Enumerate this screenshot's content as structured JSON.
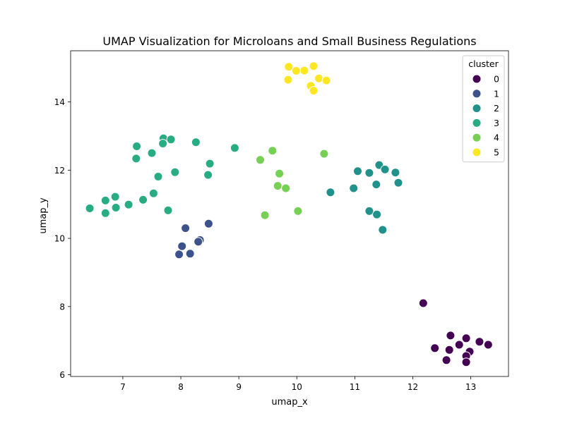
{
  "chart_data": {
    "type": "scatter",
    "title": "UMAP Visualization for Microloans and Small Business Regulations",
    "xlabel": "umap_x",
    "ylabel": "umap_y",
    "xlim": [
      6.1,
      13.65
    ],
    "ylim": [
      5.95,
      15.5
    ],
    "xticks": [
      7,
      8,
      9,
      10,
      11,
      12,
      13
    ],
    "yticks": [
      6,
      8,
      10,
      12,
      14
    ],
    "grid": false,
    "legend": {
      "title": "cluster",
      "placement": "top-right"
    },
    "series": [
      {
        "name": "0",
        "color": "#440154",
        "points": [
          [
            12.18,
            8.1
          ],
          [
            12.65,
            7.15
          ],
          [
            12.92,
            7.07
          ],
          [
            13.15,
            6.97
          ],
          [
            13.3,
            6.88
          ],
          [
            12.8,
            6.88
          ],
          [
            12.38,
            6.78
          ],
          [
            12.63,
            6.73
          ],
          [
            12.98,
            6.68
          ],
          [
            12.92,
            6.55
          ],
          [
            12.58,
            6.43
          ],
          [
            12.92,
            6.37
          ]
        ]
      },
      {
        "name": "1",
        "color": "#3b528b",
        "points": [
          [
            8.48,
            10.43
          ],
          [
            8.08,
            10.3
          ],
          [
            8.33,
            9.95
          ],
          [
            8.3,
            9.9
          ],
          [
            8.02,
            9.77
          ],
          [
            7.97,
            9.53
          ],
          [
            8.16,
            9.55
          ]
        ]
      },
      {
        "name": "2",
        "color": "#21918c",
        "points": [
          [
            11.42,
            12.15
          ],
          [
            11.52,
            12.02
          ],
          [
            11.05,
            11.97
          ],
          [
            11.25,
            11.92
          ],
          [
            11.7,
            11.93
          ],
          [
            11.75,
            11.63
          ],
          [
            11.37,
            11.58
          ],
          [
            10.98,
            11.47
          ],
          [
            10.58,
            11.35
          ],
          [
            11.25,
            10.8
          ],
          [
            11.38,
            10.7
          ],
          [
            11.48,
            10.25
          ]
        ]
      },
      {
        "name": "3",
        "color": "#27ad81",
        "points": [
          [
            7.7,
            12.93
          ],
          [
            7.83,
            12.9
          ],
          [
            7.69,
            12.78
          ],
          [
            8.26,
            12.82
          ],
          [
            7.24,
            12.7
          ],
          [
            7.5,
            12.5
          ],
          [
            7.23,
            12.34
          ],
          [
            8.93,
            12.65
          ],
          [
            8.5,
            12.19
          ],
          [
            7.9,
            11.94
          ],
          [
            8.47,
            11.86
          ],
          [
            7.61,
            11.81
          ],
          [
            7.53,
            11.32
          ],
          [
            6.87,
            11.22
          ],
          [
            7.35,
            11.13
          ],
          [
            6.7,
            11.11
          ],
          [
            7.1,
            10.99
          ],
          [
            6.88,
            10.9
          ],
          [
            6.43,
            10.88
          ],
          [
            7.78,
            10.82
          ],
          [
            6.7,
            10.74
          ]
        ]
      },
      {
        "name": "4",
        "color": "#75d054",
        "points": [
          [
            9.58,
            12.57
          ],
          [
            10.47,
            12.48
          ],
          [
            9.37,
            12.3
          ],
          [
            9.7,
            11.9
          ],
          [
            9.67,
            11.54
          ],
          [
            9.81,
            11.47
          ],
          [
            10.02,
            10.8
          ],
          [
            9.45,
            10.68
          ]
        ]
      },
      {
        "name": "5",
        "color": "#fde725",
        "points": [
          [
            10.29,
            15.05
          ],
          [
            9.86,
            15.03
          ],
          [
            10.13,
            14.92
          ],
          [
            9.99,
            14.91
          ],
          [
            10.38,
            14.69
          ],
          [
            10.51,
            14.63
          ],
          [
            9.85,
            14.65
          ],
          [
            10.24,
            14.47
          ],
          [
            10.29,
            14.33
          ]
        ]
      }
    ]
  }
}
